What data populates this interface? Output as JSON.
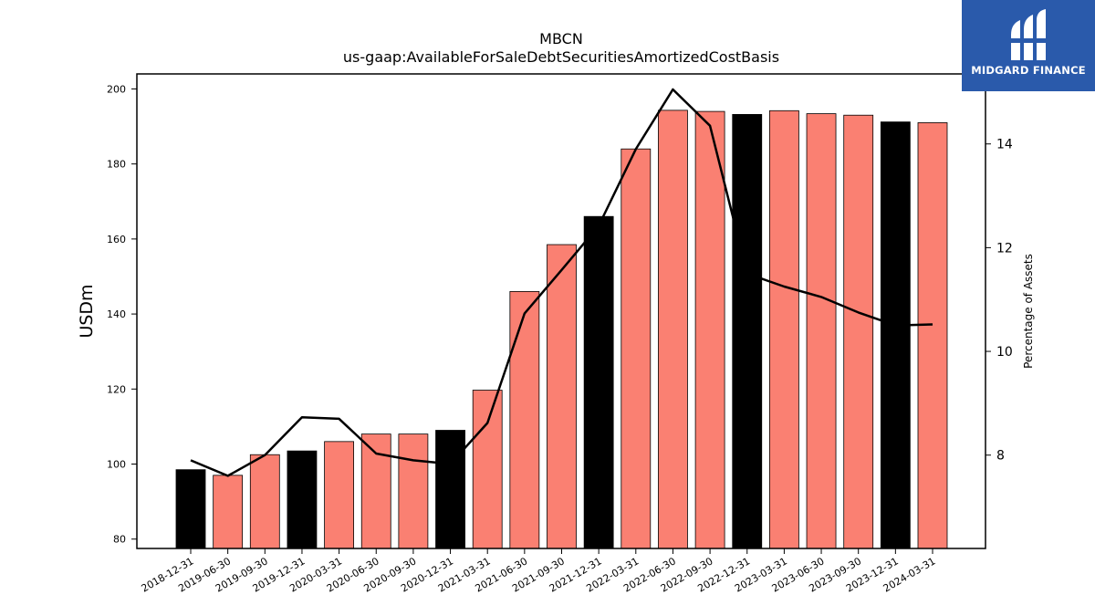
{
  "logo": {
    "name": "MIDGARD FINANCE",
    "bg_color": "#2a5aab"
  },
  "chart_data": {
    "type": "bar",
    "title": "MBCN",
    "subtitle": "us-gaap:AvailableForSaleDebtSecuritiesAmortizedCostBasis",
    "ylabel": "USDm",
    "y2label": "Percentage of Assets",
    "ylim": [
      77.5,
      204
    ],
    "y2lim": [
      6.2,
      15.35
    ],
    "yticks": [
      80,
      100,
      120,
      140,
      160,
      180,
      200
    ],
    "y2ticks": [
      8,
      10,
      12,
      14
    ],
    "categories": [
      "2018-12-31",
      "2019-06-30",
      "2019-09-30",
      "2019-12-31",
      "2020-03-31",
      "2020-06-30",
      "2020-09-30",
      "2020-12-31",
      "2021-03-31",
      "2021-06-30",
      "2021-09-30",
      "2021-12-31",
      "2022-03-31",
      "2022-06-30",
      "2022-09-30",
      "2022-12-31",
      "2023-03-31",
      "2023-06-30",
      "2023-09-30",
      "2023-12-31",
      "2024-03-31"
    ],
    "series": [
      {
        "type": "bar",
        "axis": "left",
        "values": [
          98.5,
          97.0,
          102.5,
          103.5,
          106.0,
          108.0,
          108.0,
          109.0,
          119.7,
          146.0,
          158.5,
          166.0,
          184.0,
          194.3,
          194.0,
          193.2,
          194.2,
          193.4,
          193.0,
          191.2,
          191.0
        ]
      },
      {
        "type": "line",
        "axis": "right",
        "values": [
          7.9,
          7.6,
          8.0,
          8.73,
          8.7,
          8.03,
          7.9,
          7.83,
          8.62,
          10.73,
          11.57,
          12.42,
          13.9,
          15.05,
          14.35,
          11.5,
          11.25,
          11.05,
          10.75,
          10.5,
          10.52
        ]
      }
    ],
    "bar_colors": {
      "year_end": "#000000",
      "quarter": "#fa8072"
    },
    "line_color": "#000000",
    "grid": false,
    "legend": "none"
  }
}
